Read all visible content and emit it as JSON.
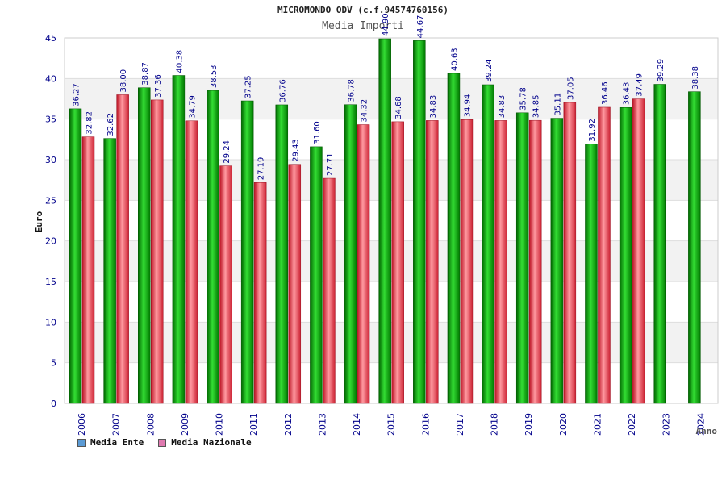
{
  "chart_data": {
    "type": "bar",
    "title": "MICROMONDO ODV (c.f.94574760156)",
    "subtitle": "Media Importi",
    "xlabel": "Anno",
    "ylabel": "Euro",
    "ylim": [
      0,
      45
    ],
    "yticks": [
      0,
      5,
      10,
      15,
      20,
      25,
      30,
      35,
      40,
      45
    ],
    "categories": [
      "2006",
      "2007",
      "2008",
      "2009",
      "2010",
      "2011",
      "2012",
      "2013",
      "2014",
      "2015",
      "2016",
      "2017",
      "2018",
      "2019",
      "2020",
      "2021",
      "2022",
      "2023",
      "2024"
    ],
    "series": [
      {
        "name": "Media Ente",
        "color": "#00aa00",
        "legend_color": "#5b9bd5",
        "values": [
          36.27,
          32.62,
          38.87,
          40.38,
          38.53,
          37.25,
          36.76,
          31.6,
          36.78,
          44.9,
          44.67,
          40.63,
          39.24,
          35.78,
          35.11,
          31.92,
          36.43,
          39.29,
          38.38
        ],
        "labels": [
          "36.27",
          "32.62",
          "38.87",
          "40.38",
          "38.53",
          "37.25",
          "36.76",
          "31.60",
          "36.78",
          "44.90",
          "44.67",
          "40.63",
          "39.24",
          "35.78",
          "35.11",
          "31.92",
          "36.43",
          "39.29",
          "38.38"
        ]
      },
      {
        "name": "Media Nazionale",
        "color": "#dd2233",
        "legend_color": "#e07ab0",
        "values": [
          32.82,
          38.0,
          37.36,
          34.79,
          29.24,
          27.19,
          29.43,
          27.71,
          34.32,
          34.68,
          34.83,
          34.94,
          34.83,
          34.85,
          37.05,
          36.46,
          37.49,
          null,
          null
        ],
        "labels": [
          "32.82",
          "38.00",
          "37.36",
          "34.79",
          "29.24",
          "27.19",
          "29.43",
          "27.71",
          "34.32",
          "34.68",
          "34.83",
          "34.94",
          "34.83",
          "34.85",
          "37.05",
          "36.46",
          "37.49",
          null,
          null
        ]
      }
    ],
    "grid": true,
    "legend_position": "bottom-left"
  }
}
